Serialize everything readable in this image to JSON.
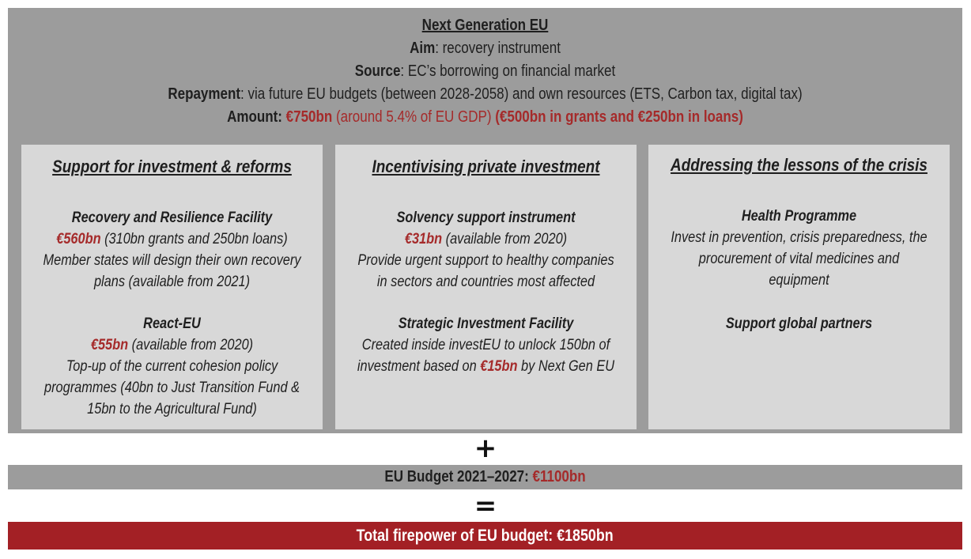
{
  "header": {
    "title": "Next Generation EU",
    "aim_label": "Aim",
    "aim_value": ": recovery instrument",
    "source_label": "Source",
    "source_value": ": EC’s borrowing on financial market",
    "repayment_label": "Repayment",
    "repayment_value": ": via future EU budgets (between 2028-2058) and own resources (ETS, Carbon tax, digital tax)",
    "amount_label": "Amount",
    "amount_sep": ": ",
    "amount_value": "€750bn",
    "amount_note": " (around 5.4% of EU GDP) ",
    "amount_split": "(€500bn in grants and €250bn in loans)"
  },
  "columns": [
    {
      "title": "Support for investment & reforms",
      "blocks": [
        {
          "name": "Recovery and Resilience Facility",
          "amount": "€560bn",
          "amount_note": " (310bn grants and 250bn loans)",
          "lines": [
            "Member states will design their own recovery",
            "plans (available from 2021)"
          ]
        },
        {
          "name": "React-EU",
          "amount": "€55bn",
          "amount_note": " (available from 2020)",
          "lines": [
            "Top-up of the current cohesion policy",
            "programmes (40bn to Just Transition Fund &",
            "15bn to  the Agricultural Fund)"
          ]
        }
      ]
    },
    {
      "title": "Incentivising private investment",
      "blocks": [
        {
          "name": "Solvency support instrument",
          "amount": "€31bn",
          "amount_note": " (available from 2020)",
          "lines": [
            "Provide urgent support to healthy companies",
            "in sectors and countries most affected"
          ]
        },
        {
          "name": "Strategic Investment Facility",
          "line1": "Created inside investEU to unlock 150bn of",
          "line2_pre": "investment based on ",
          "amount": "€15bn",
          "line2_post": " by Next Gen EU"
        }
      ]
    },
    {
      "title": "Addressing the lessons of the crisis",
      "blocks": [
        {
          "name": "Health Programme",
          "lines": [
            "Invest in prevention, crisis preparedness, the",
            "procurement of vital medicines and",
            "equipment"
          ]
        },
        {
          "name": "Support global partners"
        }
      ]
    }
  ],
  "plus_symbol": "+",
  "budget": {
    "label": "EU Budget 2021–2027",
    "sep": ": ",
    "value": "€1100bn"
  },
  "equals_symbol": "=",
  "total": {
    "label": "Total firepower of EU budget: €1850bn"
  },
  "colors": {
    "dark_grey": "#9c9c9c",
    "light_grey": "#d8d8d8",
    "accent_red": "#a52a2a",
    "total_bar": "#a32025"
  }
}
